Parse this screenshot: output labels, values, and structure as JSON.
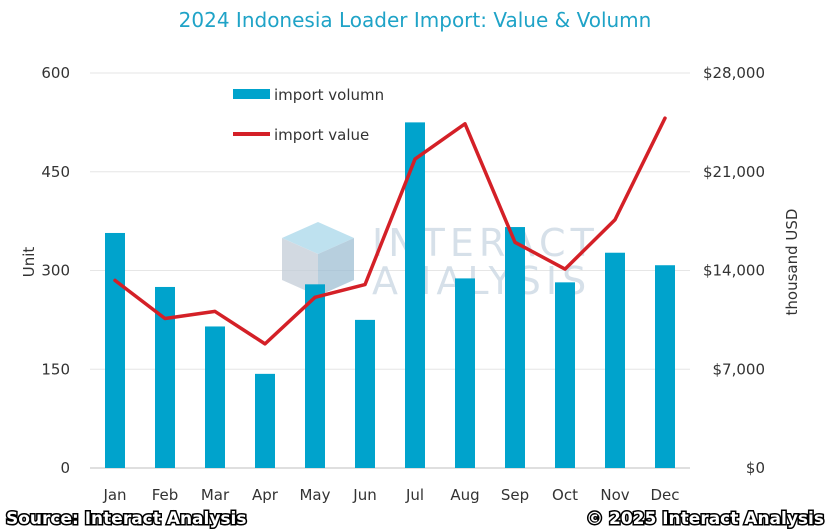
{
  "chart_data": {
    "type": "bar",
    "title": "2024 Indonesia Loader Import: Value & Volumn",
    "categories": [
      "Jan",
      "Feb",
      "Mar",
      "Apr",
      "May",
      "Jun",
      "Jul",
      "Aug",
      "Sep",
      "Oct",
      "Nov",
      "Dec"
    ],
    "series": [
      {
        "name": "import volumn",
        "type": "bar",
        "axis": "left",
        "color": "#00a3cc",
        "values": [
          357,
          275,
          215,
          143,
          279,
          225,
          525,
          288,
          366,
          282,
          327,
          308
        ]
      },
      {
        "name": "import value",
        "type": "line",
        "axis": "right",
        "color": "#d42027",
        "values": [
          13300,
          10600,
          11100,
          8800,
          12100,
          13000,
          21900,
          24400,
          16000,
          14100,
          17600,
          24800
        ]
      }
    ],
    "ylabel": "Unit",
    "ylabel_right": "thousand USD",
    "ylim": [
      0,
      600
    ],
    "ylim_right": [
      0,
      28000
    ],
    "yticks": [
      "0",
      "150",
      "300",
      "450",
      "600"
    ],
    "yticks_right": [
      "$0",
      "$7,000",
      "$14,000",
      "$21,000",
      "$28,000"
    ],
    "grid": true,
    "legend_position": "top-left"
  },
  "watermark": {
    "line1": "INTERACT",
    "line2": "ANALYSIS"
  },
  "footer": {
    "source": "Source: Interact Analysis",
    "copyright": "© 2025 Interact Analysis"
  }
}
